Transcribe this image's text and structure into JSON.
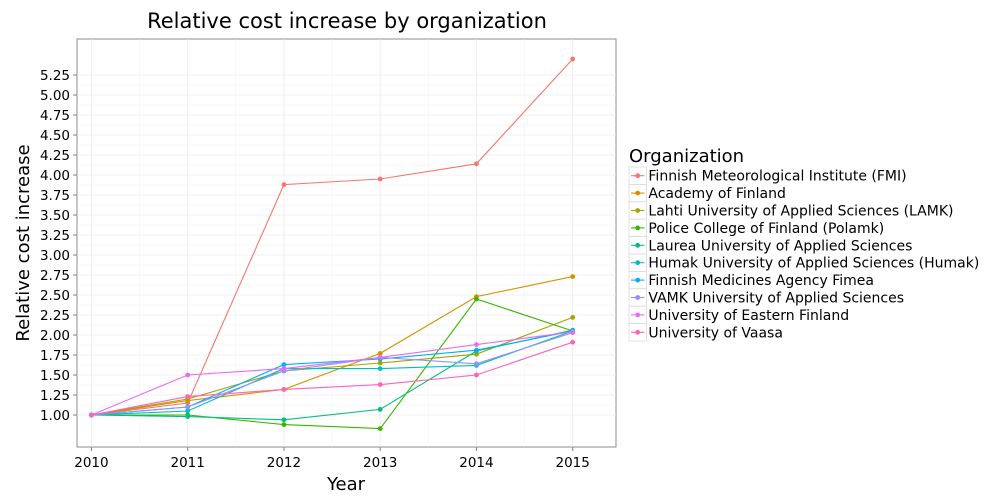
{
  "chart_data": {
    "type": "line",
    "title": "Relative cost increase by organization",
    "xlabel": "Year",
    "ylabel": "Relative cost increase",
    "x": [
      2010,
      2011,
      2012,
      2013,
      2014,
      2015
    ],
    "xlim": [
      2009.85,
      2015.45
    ],
    "ylim": [
      0.6,
      5.7
    ],
    "yticks": [
      1.0,
      1.25,
      1.5,
      1.75,
      2.0,
      2.25,
      2.5,
      2.75,
      3.0,
      3.25,
      3.5,
      3.75,
      4.0,
      4.25,
      4.5,
      4.75,
      5.0,
      5.25
    ],
    "grid": true,
    "legend_title": "Organization",
    "legend_position": "right",
    "series": [
      {
        "name": "Finnish Meteorological Institute (FMI)",
        "color": "#F8766D",
        "values": [
          1.0,
          1.15,
          3.88,
          3.95,
          4.14,
          5.45
        ]
      },
      {
        "name": "Academy of Finland",
        "color": "#D89000",
        "values": [
          1.0,
          1.18,
          1.32,
          1.77,
          2.48,
          2.73
        ]
      },
      {
        "name": "Lahti University of Applied Sciences (LAMK)",
        "color": "#A3A500",
        "values": [
          1.0,
          1.2,
          1.55,
          1.65,
          1.76,
          2.22
        ]
      },
      {
        "name": "Police College of Finland (Polamk)",
        "color": "#39B600",
        "values": [
          1.0,
          1.0,
          0.88,
          0.83,
          2.45,
          2.05
        ]
      },
      {
        "name": "Laurea University of Applied Sciences",
        "color": "#00BF7D",
        "values": [
          1.0,
          0.98,
          0.94,
          1.07,
          1.8,
          2.06
        ]
      },
      {
        "name": "Humak University of Applied Sciences (Humak)",
        "color": "#00BFC4",
        "values": [
          1.0,
          1.05,
          1.58,
          1.58,
          1.62,
          2.05
        ]
      },
      {
        "name": "Finnish Medicines Agency Fimea",
        "color": "#00B0F6",
        "values": [
          1.0,
          1.1,
          1.63,
          1.7,
          1.81,
          2.05
        ]
      },
      {
        "name": "VAMK University of Applied Sciences",
        "color": "#9590FF",
        "values": [
          1.0,
          1.1,
          1.55,
          1.72,
          1.64,
          2.03
        ]
      },
      {
        "name": "University of Eastern Finland",
        "color": "#E76BF3",
        "values": [
          1.0,
          1.5,
          1.58,
          1.72,
          1.88,
          2.04
        ]
      },
      {
        "name": "University of Vaasa",
        "color": "#FF62BC",
        "values": [
          1.0,
          1.23,
          1.32,
          1.38,
          1.5,
          1.91
        ]
      }
    ]
  }
}
